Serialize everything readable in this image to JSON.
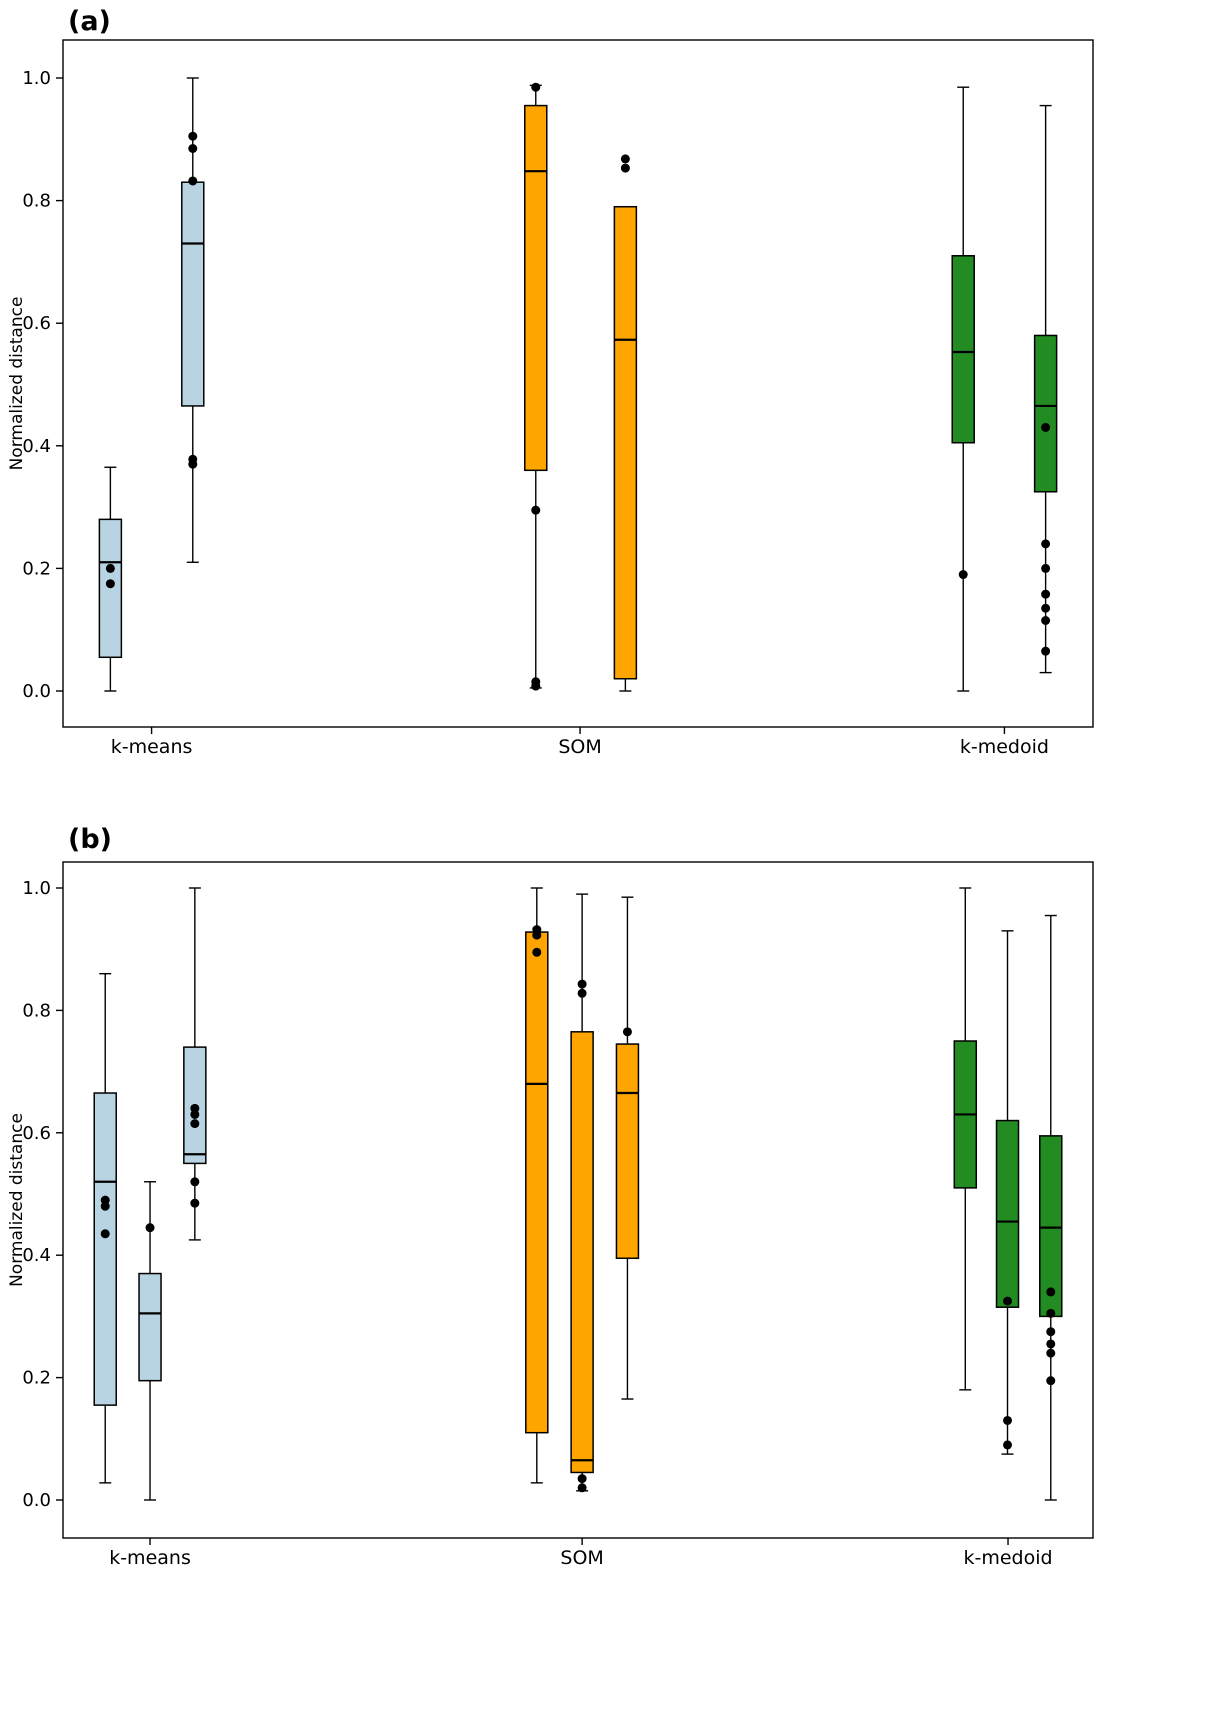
{
  "figure": {
    "background_color": "#ffffff",
    "panel_labels": [
      "(a)",
      "(b)"
    ]
  },
  "colors": {
    "k-means": "#b8d4e3",
    "SOM": "#ffa500",
    "k-medoid": "#228b22",
    "edges": "#000000",
    "outliers": "#000000"
  },
  "chart_data": [
    {
      "type": "box",
      "title": "(a)",
      "xlabel": "",
      "ylabel": "Normalized distance",
      "ylim": [
        -0.06,
        1.06
      ],
      "grid": false,
      "legend": "none",
      "yticks": [
        0.0,
        0.2,
        0.4,
        0.6,
        0.8,
        1.0
      ],
      "ytick_labels": [
        "0.0",
        "0.2",
        "0.4",
        "0.6",
        "0.8",
        "1.0"
      ],
      "groups": [
        {
          "label": "k-means",
          "x": 0.086
        },
        {
          "label": "SOM",
          "x": 0.502
        },
        {
          "label": "k-medoid",
          "x": 0.914
        }
      ],
      "boxes": [
        {
          "group": "k-means",
          "x": 0.046,
          "whislo": 0.0,
          "q1": 0.055,
          "med": 0.21,
          "q3": 0.28,
          "whishi": 0.365,
          "points": [
            0.175,
            0.2
          ]
        },
        {
          "group": "k-means",
          "x": 0.126,
          "whislo": 0.21,
          "q1": 0.465,
          "med": 0.73,
          "q3": 0.83,
          "whishi": 1.0,
          "points": [
            0.37,
            0.378,
            0.832,
            0.885,
            0.905
          ]
        },
        {
          "group": "SOM",
          "x": 0.459,
          "whislo": 0.005,
          "q1": 0.36,
          "med": 0.848,
          "q3": 0.955,
          "whishi": 0.988,
          "points": [
            0.295,
            0.008,
            0.015,
            0.985
          ]
        },
        {
          "group": "SOM",
          "x": 0.546,
          "whislo": 0.0,
          "q1": 0.02,
          "med": 0.573,
          "q3": 0.79,
          "whishi": 0.79,
          "points": [
            0.853,
            0.868
          ]
        },
        {
          "group": "k-medoid",
          "x": 0.874,
          "whislo": 0.0,
          "q1": 0.405,
          "med": 0.553,
          "q3": 0.71,
          "whishi": 0.985,
          "points": [
            0.19
          ]
        },
        {
          "group": "k-medoid",
          "x": 0.954,
          "whislo": 0.03,
          "q1": 0.325,
          "med": 0.465,
          "q3": 0.58,
          "whishi": 0.955,
          "points": [
            0.065,
            0.115,
            0.135,
            0.158,
            0.2,
            0.24,
            0.43
          ]
        }
      ]
    },
    {
      "type": "box",
      "title": "(b)",
      "xlabel": "",
      "ylabel": "Normalized distance",
      "ylim": [
        -0.06,
        1.06
      ],
      "grid": false,
      "legend": "none",
      "yticks": [
        0.0,
        0.2,
        0.4,
        0.6,
        0.8,
        1.0
      ],
      "ytick_labels": [
        "0.0",
        "0.2",
        "0.4",
        "0.6",
        "0.8",
        "1.0"
      ],
      "groups": [
        {
          "label": "k-means",
          "x": 0.0845
        },
        {
          "label": "SOM",
          "x": 0.504
        },
        {
          "label": "k-medoid",
          "x": 0.9175
        }
      ],
      "boxes": [
        {
          "group": "k-means",
          "x": 0.041,
          "whislo": 0.028,
          "q1": 0.155,
          "med": 0.52,
          "q3": 0.665,
          "whishi": 0.86,
          "points": [
            0.435,
            0.48,
            0.49
          ]
        },
        {
          "group": "k-means",
          "x": 0.0845,
          "whislo": 0.0,
          "q1": 0.195,
          "med": 0.305,
          "q3": 0.37,
          "whishi": 0.52,
          "points": [
            0.445
          ]
        },
        {
          "group": "k-means",
          "x": 0.128,
          "whislo": 0.425,
          "q1": 0.55,
          "med": 0.565,
          "q3": 0.74,
          "whishi": 1.0,
          "points": [
            0.485,
            0.52,
            0.615,
            0.63,
            0.64
          ]
        },
        {
          "group": "SOM",
          "x": 0.46,
          "whislo": 0.028,
          "q1": 0.11,
          "med": 0.68,
          "q3": 0.928,
          "whishi": 1.0,
          "points": [
            0.895,
            0.923,
            0.932
          ]
        },
        {
          "group": "SOM",
          "x": 0.504,
          "whislo": 0.015,
          "q1": 0.045,
          "med": 0.065,
          "q3": 0.765,
          "whishi": 0.99,
          "points": [
            0.02,
            0.035,
            0.828,
            0.843
          ]
        },
        {
          "group": "SOM",
          "x": 0.548,
          "whislo": 0.165,
          "q1": 0.395,
          "med": 0.665,
          "q3": 0.745,
          "whishi": 0.985,
          "points": [
            0.765
          ]
        },
        {
          "group": "k-medoid",
          "x": 0.876,
          "whislo": 0.18,
          "q1": 0.51,
          "med": 0.63,
          "q3": 0.75,
          "whishi": 1.0,
          "points": []
        },
        {
          "group": "k-medoid",
          "x": 0.917,
          "whislo": 0.075,
          "q1": 0.315,
          "med": 0.455,
          "q3": 0.62,
          "whishi": 0.93,
          "points": [
            0.09,
            0.13,
            0.325
          ]
        },
        {
          "group": "k-medoid",
          "x": 0.959,
          "whislo": 0.0,
          "q1": 0.3,
          "med": 0.445,
          "q3": 0.595,
          "whishi": 0.955,
          "points": [
            0.195,
            0.24,
            0.255,
            0.275,
            0.305,
            0.34
          ]
        }
      ]
    }
  ]
}
